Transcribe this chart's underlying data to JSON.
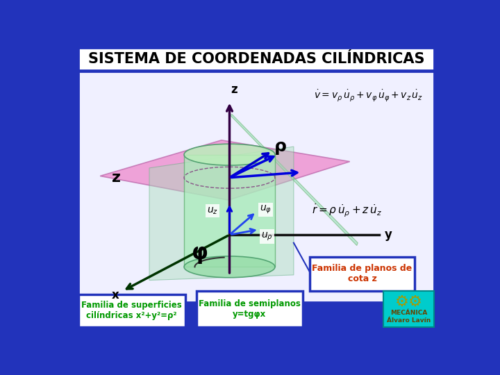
{
  "title": "SISTEMA DE COORDENADAS CILÍNDRICAS",
  "title_fontsize": 15,
  "bg_blue": "#2233BB",
  "main_bg": "#F0F0FF",
  "title_box_color": "#FFFFFF",
  "box1_text": "Familia de superficies\ncilíndricas x²+y²=ρ²",
  "box2_text": "Familia de semiplanos\ny=tgφx",
  "box3_text": "Familia de planos de\ncota z",
  "box_text_color": "#009900",
  "box3_text_color": "#CC3300",
  "box_border_color": "#2233BB",
  "cyan_box_color": "#00CCCC",
  "formula1_text": "$\\dot{v} = v_\\rho \\dot{u}_\\rho + v_\\varphi \\dot{u}_\\varphi + v_z \\dot{u}_z$",
  "formula2_text": "$\\dot{r} = \\rho \\dot{u}_\\rho + z \\dot{u}_z$",
  "plane_pink": "#EE88CC",
  "plane_green": "#88DDAA",
  "cyl_green": "#99EE99",
  "axis_dark": "#003300",
  "axis_blue": "#0000DD",
  "uz_color": "#0000DD",
  "uphi_color": "#2244EE",
  "urho_color": "#2244EE",
  "rho_arrow_color": "#0000CC",
  "xy_axis_color": "#003300",
  "y_line_color": "#111111"
}
